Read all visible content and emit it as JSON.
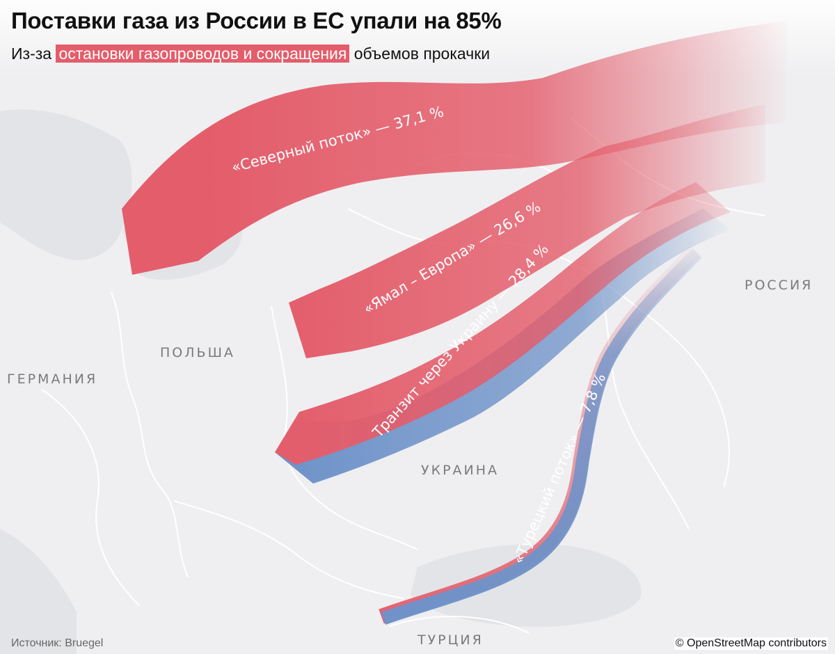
{
  "title": "Поставки газа из России в ЕС упали на 85%",
  "subtitle": {
    "before": "Из-за ",
    "highlight": "остановки газопроводов и сокращения",
    "after": " объемов прокачки"
  },
  "countries": [
    "ГЕРМАНИЯ",
    "ПОЛЬША",
    "УКРАИНА",
    "РОССИЯ",
    "ТУРЦИЯ"
  ],
  "routes": [
    {
      "name": "«Северный поток»",
      "share": 37.1,
      "label": "«Северный поток» — 37,1 %"
    },
    {
      "name": "«Ямал – Европа»",
      "share": 26.6,
      "label": "«Ямал – Европа» — 26,6 %"
    },
    {
      "name": "Транзит через Украину",
      "share": 28.4,
      "label": "Транзит через Украину — 28,4 %"
    },
    {
      "name": "«Турецкий поток»",
      "share": 7.8,
      "label": "«Турецкий поток» — 7,8 %"
    }
  ],
  "source": "Источник: Bruegel",
  "credit": "© OpenStreetMap contributors",
  "colors": {
    "red": "#e45d6b",
    "blue": "#6f93c9",
    "map_bg": "#efeff1",
    "land_line": "#ffffff",
    "sea": "#e3e4e7"
  }
}
